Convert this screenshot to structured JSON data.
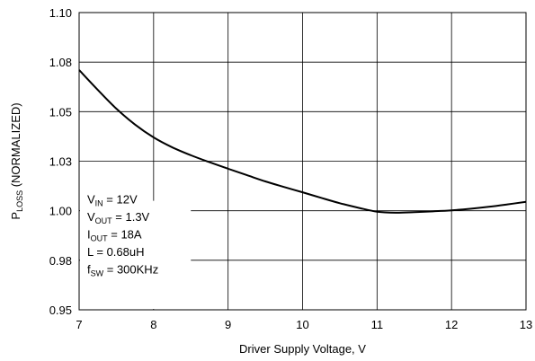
{
  "chart_data": {
    "type": "line",
    "title": "",
    "xlabel": "Driver Supply Voltage, V",
    "ylabel": {
      "main": "P",
      "sub": "LOSS",
      "rest": " (NORMALIZED)"
    },
    "xlim": [
      7,
      13
    ],
    "ylim": [
      0.95,
      1.1
    ],
    "x_ticks": [
      7,
      8,
      9,
      10,
      11,
      12,
      13
    ],
    "x_tick_labels": [
      "7",
      "8",
      "9",
      "10",
      "11",
      "12",
      "13"
    ],
    "y_ticks": [
      0.95,
      0.975,
      1.0,
      1.025,
      1.05,
      1.075,
      1.1
    ],
    "y_tick_labels": [
      "0.95",
      "0.98",
      "1.00",
      "1.03",
      "1.05",
      "1.08",
      "1.10"
    ],
    "grid": true,
    "series": [
      {
        "x": [
          7.0,
          7.25,
          7.5,
          7.75,
          8.0,
          8.25,
          8.5,
          8.75,
          9.0,
          9.25,
          9.5,
          9.75,
          10.0,
          10.25,
          10.5,
          10.75,
          11.0,
          11.25,
          11.5,
          11.75,
          12.0,
          12.25,
          12.5,
          12.75,
          13.0
        ],
        "y": [
          1.071,
          1.061,
          1.0515,
          1.0435,
          1.037,
          1.032,
          1.028,
          1.0245,
          1.0212,
          1.018,
          1.0148,
          1.012,
          1.0093,
          1.0065,
          1.0038,
          1.0015,
          0.9995,
          0.999,
          0.9993,
          0.9997,
          1.0002,
          1.001,
          1.002,
          1.0032,
          1.0045
        ]
      }
    ],
    "annotations": [
      {
        "main": "V",
        "sub": "IN",
        "rest": " = 12V"
      },
      {
        "main": "V",
        "sub": "OUT",
        "rest": " = 1.3V"
      },
      {
        "main": "I",
        "sub": "OUT",
        "rest": " = 18A"
      },
      {
        "main": "L = 0.68uH",
        "sub": "",
        "rest": ""
      },
      {
        "main": "f",
        "sub": "SW",
        "rest": " = 300KHz"
      }
    ],
    "colors": {
      "line": "#000000",
      "grid": "#000000",
      "background": "#ffffff"
    }
  }
}
